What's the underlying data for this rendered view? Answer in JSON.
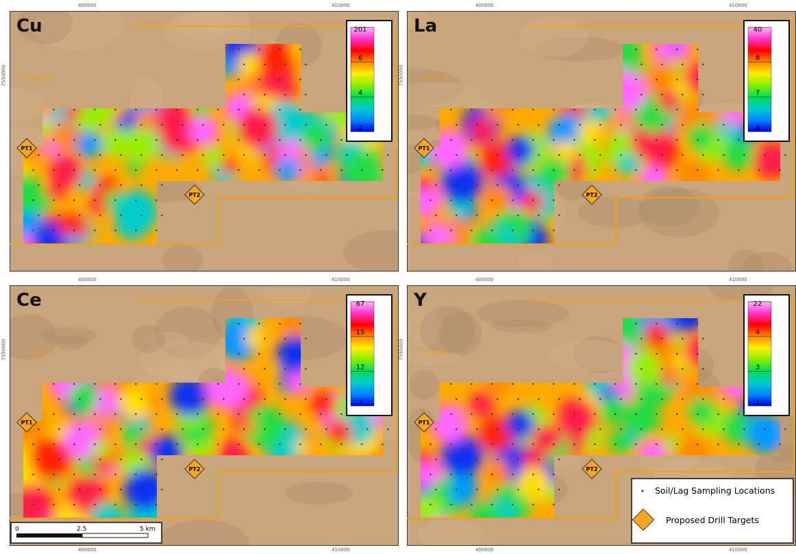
{
  "panels": [
    {
      "element": "Cu",
      "legend": [
        "201",
        "6",
        "4",
        "2"
      ],
      "tenement": "E80/5171",
      "targets": [
        "PT1",
        "PT2"
      ],
      "x_labels": [
        "400000",
        "410000"
      ],
      "y_label": "7550000"
    },
    {
      "element": "La",
      "legend": [
        "40",
        "8",
        "7",
        "4"
      ],
      "tenement": "E80/5171",
      "targets": [
        "PT1",
        "PT2"
      ],
      "x_labels": [
        "400000",
        "410000"
      ],
      "y_label": "7550000"
    },
    {
      "element": "Ce",
      "legend": [
        "67",
        "15",
        "12",
        "7"
      ],
      "tenement": "E80/5171",
      "targets": [
        "PT1",
        "PT2"
      ],
      "x_labels": [
        "400000",
        "410000"
      ],
      "x_labels_bottom": [
        "400000",
        "410000"
      ],
      "y_label": "7550000"
    },
    {
      "element": "Y",
      "legend": [
        "22",
        "4",
        "3",
        "1"
      ],
      "tenement": "E80/5171",
      "targets": [
        "PT1",
        "PT2"
      ],
      "x_labels": [
        "400000",
        "410000"
      ],
      "x_labels_bottom": [
        "400000",
        "410000"
      ],
      "y_label": "7550000"
    }
  ],
  "scale_bar": {
    "labels": [
      "0",
      "2.5",
      "5 km"
    ]
  },
  "legend": {
    "items": [
      "Soil/Lag Sampling Locations",
      "Proposed Drill Targets"
    ]
  }
}
